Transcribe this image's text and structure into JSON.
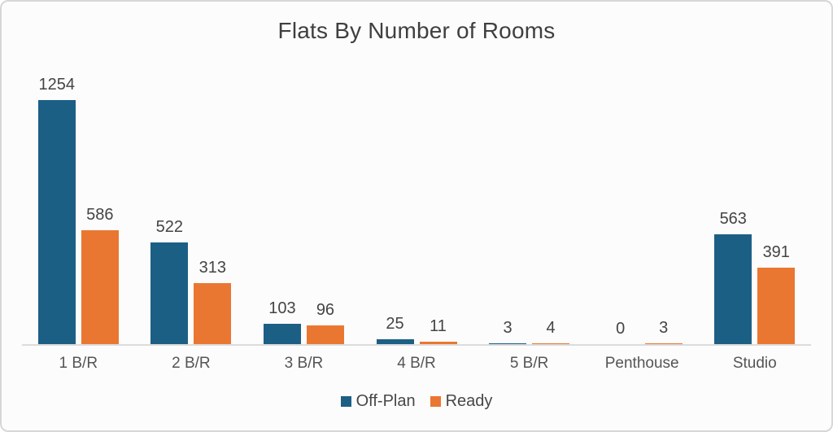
{
  "chart_data": {
    "type": "bar",
    "title": "Flats By Number of Rooms",
    "categories": [
      "1 B/R",
      "2 B/R",
      "3 B/R",
      "4 B/R",
      "5 B/R",
      "Penthouse",
      "Studio"
    ],
    "series": [
      {
        "name": "Off-Plan",
        "color": "#1c5f85",
        "values": [
          1254,
          522,
          103,
          25,
          3,
          0,
          563
        ]
      },
      {
        "name": "Ready",
        "color": "#e97732",
        "values": [
          586,
          313,
          96,
          11,
          4,
          3,
          391
        ]
      }
    ],
    "xlabel": "",
    "ylabel": "",
    "ylim": [
      0,
      1254
    ],
    "grid": false,
    "value_labels": true,
    "legend_position": "bottom"
  },
  "style": {
    "card_background": "#fcfcfc",
    "card_border": "#d7d7d7",
    "axis_line_color": "#dcdcdc",
    "title_color": "#3f3f3f",
    "label_color": "#444444"
  }
}
